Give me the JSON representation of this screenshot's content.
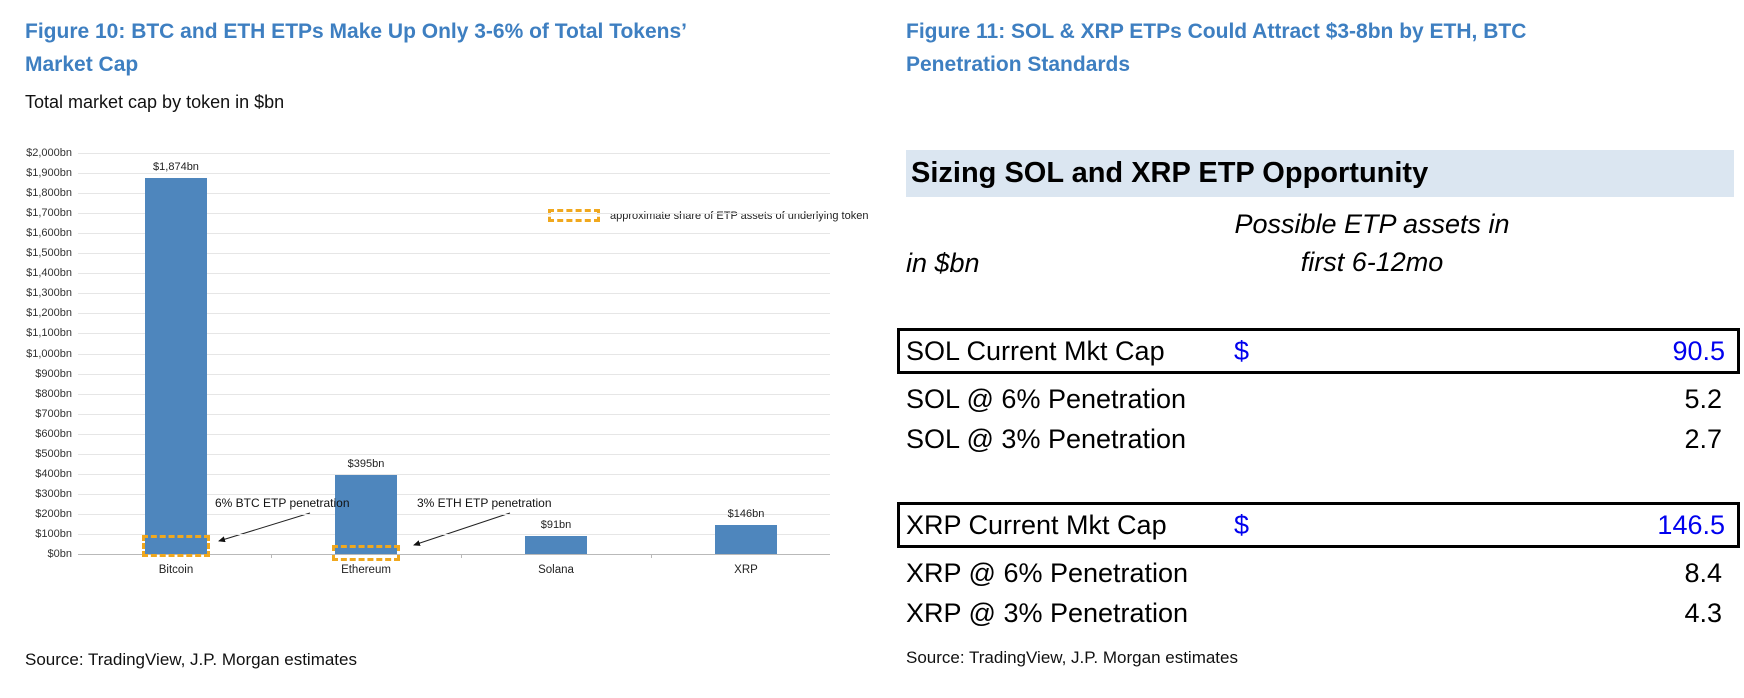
{
  "fig10": {
    "title_lines": [
      "Figure 10: BTC and ETH ETPs Make Up Only 3-6% of Total Tokens’",
      "Market Cap"
    ],
    "subtitle": "Total market cap by token in $bn",
    "source": "Source: TradingView, J.P. Morgan estimates"
  },
  "fig11": {
    "title_lines": [
      "Figure 11: SOL & XRP ETPs Could Attract $3-8bn by ETH, BTC",
      "Penetration Standards"
    ],
    "table_title": "Sizing SOL and XRP ETP Opportunity",
    "unit_label": "in $bn",
    "col_header_lines": [
      "Possible ETP assets in",
      "first 6-12mo"
    ],
    "source": "Source: TradingView, J.P. Morgan estimates"
  },
  "colors": {
    "figure_title_blue": "#3e7fc1",
    "bar_blue": "#4e86bd",
    "highlight_gold": "#f0a81e",
    "table_header_band": "#dbe6f1",
    "table_value_blue": "#0101ee",
    "gridline": "#e6e6e6"
  },
  "chart_data": [
    {
      "type": "bar",
      "title": "Total market cap by token in $bn",
      "categories": [
        "Bitcoin",
        "Ethereum",
        "Solana",
        "XRP"
      ],
      "values": [
        1874,
        395,
        91,
        146
      ],
      "bar_labels": [
        "$1,874bn",
        "$395bn",
        "$91bn",
        "$146bn"
      ],
      "xlabel": "",
      "ylabel": "",
      "ylim": [
        0,
        2000
      ],
      "ytick_step": 100,
      "ytick_labels": [
        "$0bn",
        "$100bn",
        "$200bn",
        "$300bn",
        "$400bn",
        "$500bn",
        "$600bn",
        "$700bn",
        "$800bn",
        "$900bn",
        "$1,000bn",
        "$1,100bn",
        "$1,200bn",
        "$1,300bn",
        "$1,400bn",
        "$1,500bn",
        "$1,600bn",
        "$1,700bn",
        "$1,800bn",
        "$1,900bn",
        "$2,000bn"
      ],
      "grid": true,
      "legend": {
        "position": "upper-right",
        "label": "approximate share of ETP assets of underlying token"
      },
      "annotations": [
        {
          "text": "6% BTC ETP penetration",
          "category": "Bitcoin"
        },
        {
          "text": "3% ETH ETP penetration",
          "category": "Ethereum"
        }
      ]
    },
    {
      "type": "table",
      "title": "Sizing SOL and XRP ETP Opportunity",
      "unit": "in $bn",
      "column_header": "Possible ETP assets in first 6-12mo",
      "rows": [
        {
          "label": "SOL Current Mkt Cap",
          "currency": "$",
          "value": "90.5",
          "boxed": true
        },
        {
          "label": "SOL @ 6% Penetration",
          "currency": "",
          "value": "5.2",
          "boxed": false
        },
        {
          "label": "SOL @ 3% Penetration",
          "currency": "",
          "value": "2.7",
          "boxed": false
        },
        {
          "label": "XRP Current Mkt Cap",
          "currency": "$",
          "value": "146.5",
          "boxed": true
        },
        {
          "label": "XRP @ 6% Penetration",
          "currency": "",
          "value": "8.4",
          "boxed": false
        },
        {
          "label": "XRP @ 3% Penetration",
          "currency": "",
          "value": "4.3",
          "boxed": false
        }
      ]
    }
  ]
}
